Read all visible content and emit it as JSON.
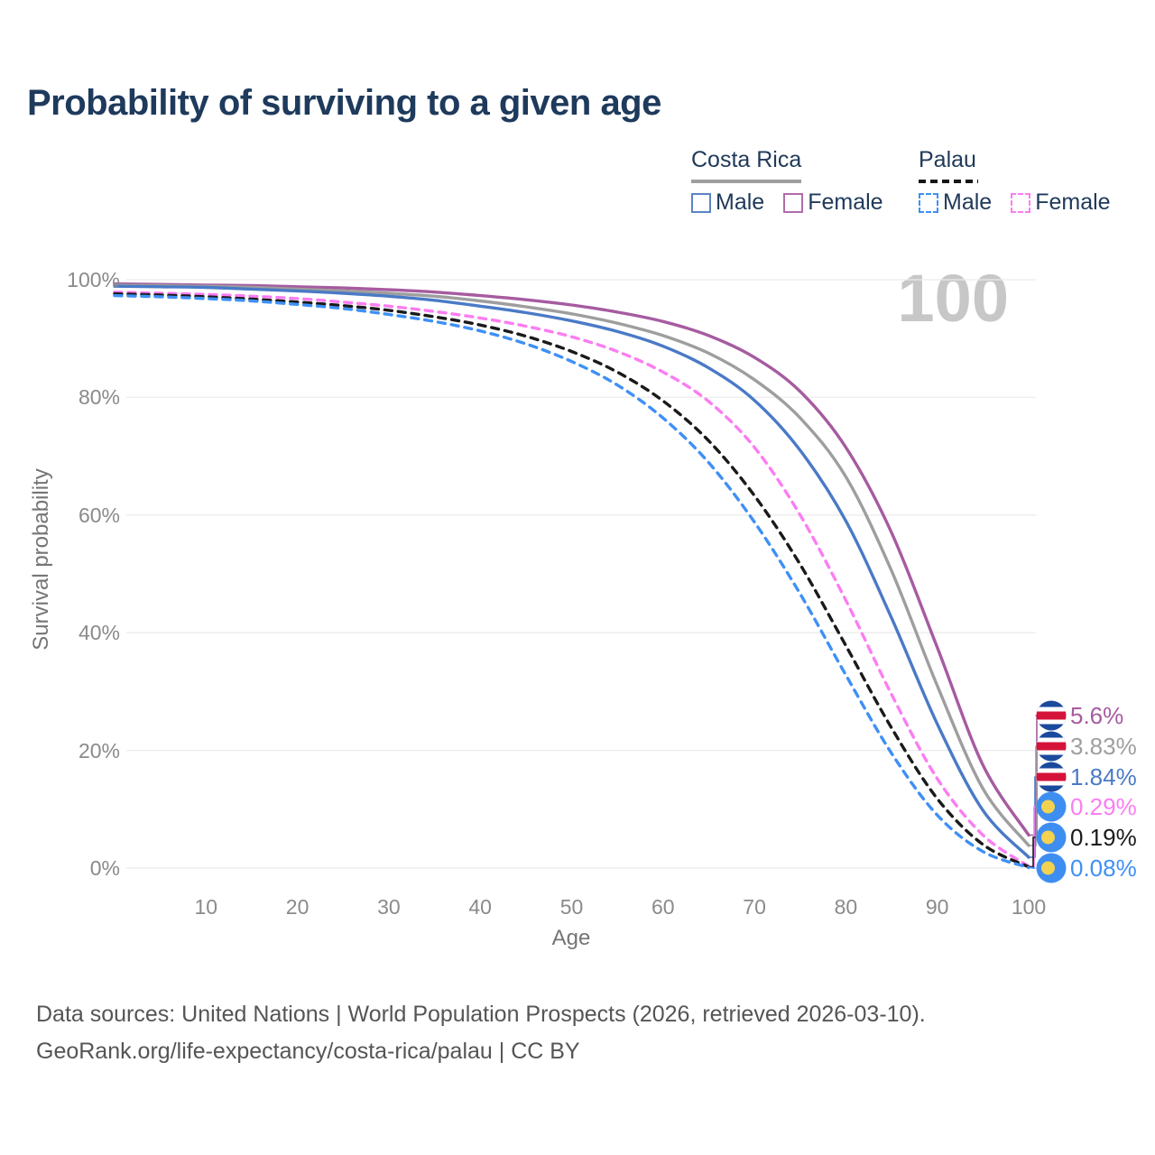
{
  "title": "Probability of surviving to a given age",
  "watermark": "100",
  "legend": {
    "groups": [
      {
        "label": "Costa Rica",
        "line_style": "solid",
        "rule_color": "#9e9e9e",
        "items": [
          {
            "label": "Male",
            "color": "#4a7ac6"
          },
          {
            "label": "Female",
            "color": "#a65ba0"
          }
        ]
      },
      {
        "label": "Palau",
        "line_style": "dashed",
        "rule_color": "#161616",
        "items": [
          {
            "label": "Male",
            "color": "#3f90f5"
          },
          {
            "label": "Female",
            "color": "#fb7df2"
          }
        ]
      }
    ]
  },
  "axes": {
    "y_label": "Survival probability",
    "x_label": "Age",
    "y_ticks": [
      {
        "label": "0%",
        "value": 0
      },
      {
        "label": "20%",
        "value": 20
      },
      {
        "label": "40%",
        "value": 40
      },
      {
        "label": "60%",
        "value": 60
      },
      {
        "label": "80%",
        "value": 80
      },
      {
        "label": "100%",
        "value": 100
      }
    ],
    "x_ticks": [
      {
        "label": "10",
        "age": 10
      },
      {
        "label": "20",
        "age": 20
      },
      {
        "label": "30",
        "age": 30
      },
      {
        "label": "40",
        "age": 40
      },
      {
        "label": "50",
        "age": 50
      },
      {
        "label": "60",
        "age": 60
      },
      {
        "label": "70",
        "age": 70
      },
      {
        "label": "80",
        "age": 80
      },
      {
        "label": "90",
        "age": 90
      },
      {
        "label": "100",
        "age": 100
      }
    ]
  },
  "chart_data": {
    "type": "line",
    "title": "Probability of surviving to a given age",
    "xlabel": "Age",
    "ylabel": "Survival probability",
    "xlim": [
      0,
      100
    ],
    "ylim": [
      0,
      100
    ],
    "grid": "horizontal",
    "legend_position": "top-right",
    "x": [
      0,
      5,
      10,
      15,
      20,
      25,
      30,
      35,
      40,
      45,
      50,
      55,
      60,
      65,
      70,
      75,
      80,
      85,
      90,
      95,
      100
    ],
    "series": [
      {
        "name": "Costa Rica Female",
        "country": "Costa Rica",
        "sex": "Female",
        "style": "solid",
        "color": "#a65ba0",
        "flag": "costa-rica",
        "end_label": "5.6%",
        "values": [
          99.3,
          99.2,
          99.1,
          99.0,
          98.8,
          98.6,
          98.3,
          97.9,
          97.3,
          96.6,
          95.7,
          94.5,
          92.9,
          90.5,
          86.8,
          81.0,
          71.5,
          57.0,
          37.5,
          17.5,
          5.6
        ]
      },
      {
        "name": "Costa Rica Both sexes",
        "country": "Costa Rica",
        "sex": "Both",
        "style": "solid",
        "color": "#9e9e9e",
        "flag": "costa-rica",
        "end_label": "3.83%",
        "values": [
          99.1,
          99.0,
          98.9,
          98.7,
          98.4,
          98.1,
          97.7,
          97.2,
          96.4,
          95.4,
          94.2,
          92.6,
          90.5,
          87.5,
          83.0,
          76.5,
          66.5,
          50.5,
          31.0,
          13.5,
          3.83
        ]
      },
      {
        "name": "Costa Rica Male",
        "country": "Costa Rica",
        "sex": "Male",
        "style": "solid",
        "color": "#4a7ac6",
        "flag": "costa-rica",
        "end_label": "1.84%",
        "values": [
          98.9,
          98.8,
          98.7,
          98.4,
          98.1,
          97.7,
          97.2,
          96.5,
          95.5,
          94.4,
          93.0,
          91.2,
          88.7,
          85.0,
          79.5,
          71.0,
          59.0,
          42.5,
          24.5,
          9.8,
          1.84
        ]
      },
      {
        "name": "Palau Female",
        "country": "Palau",
        "sex": "Female",
        "style": "dashed",
        "color": "#fb7df2",
        "flag": "palau",
        "end_label": "0.29%",
        "values": [
          97.9,
          97.7,
          97.5,
          97.2,
          96.8,
          96.2,
          95.5,
          94.6,
          93.5,
          92.1,
          90.3,
          87.8,
          84.3,
          79.3,
          71.5,
          60.0,
          45.5,
          29.5,
          15.2,
          5.6,
          0.29
        ]
      },
      {
        "name": "Palau Both sexes",
        "country": "Palau",
        "sex": "Both",
        "style": "dashed",
        "color": "#1a1a1a",
        "flag": "palau",
        "end_label": "0.19%",
        "values": [
          97.6,
          97.4,
          97.1,
          96.7,
          96.2,
          95.6,
          94.8,
          93.7,
          92.3,
          90.4,
          87.8,
          84.3,
          79.4,
          72.6,
          63.3,
          51.6,
          37.8,
          23.8,
          11.8,
          4.0,
          0.19
        ]
      },
      {
        "name": "Palau Male",
        "country": "Palau",
        "sex": "Male",
        "style": "dashed",
        "color": "#3f90f5",
        "flag": "palau",
        "end_label": "0.08%",
        "values": [
          97.3,
          97.1,
          96.8,
          96.4,
          95.8,
          95.1,
          94.1,
          92.9,
          91.3,
          89.1,
          86.1,
          82.1,
          76.5,
          68.9,
          58.8,
          46.6,
          32.8,
          19.5,
          9.0,
          2.8,
          0.08
        ]
      }
    ],
    "flag_colors": {
      "costa_rica_blue": "#1a4a9e",
      "costa_rica_red": "#d5133a",
      "costa_rica_white": "#ffffff",
      "palau_blue": "#3e8ef2",
      "palau_yellow": "#f2d24f"
    }
  },
  "sources": {
    "line1": "Data sources: United Nations | World Population Prospects (2026, retrieved 2026-03-10).",
    "line2": "GeoRank.org/life-expectancy/costa-rica/palau | CC BY"
  }
}
